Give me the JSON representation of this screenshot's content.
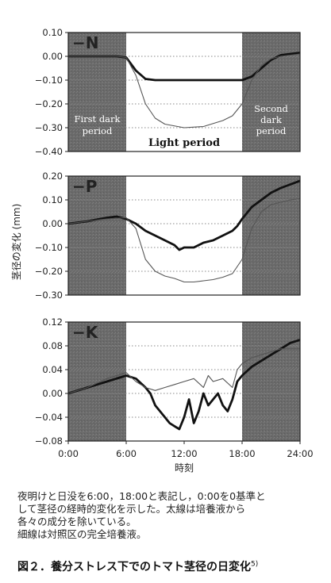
{
  "chart_data": [
    {
      "type": "line",
      "panel_label": "−N",
      "ylim": [
        -0.4,
        0.1
      ],
      "yticks": [
        "0.10",
        "0.00",
        "−0.10",
        "−0.20",
        "−0.30",
        "−0.40"
      ],
      "grid": "dotted horizontal",
      "period_labels": {
        "first_dark": [
          "First dark",
          "period"
        ],
        "light": "Light period",
        "second_dark": [
          "Second",
          "dark",
          "period"
        ]
      },
      "series": [
        {
          "style": "thick",
          "x": [
            0,
            3,
            5,
            6,
            7,
            8,
            9,
            10,
            12,
            14,
            16,
            17,
            18,
            19,
            20,
            21,
            22,
            23,
            24
          ],
          "y": [
            0.0,
            0.0,
            0.0,
            -0.005,
            -0.06,
            -0.095,
            -0.1,
            -0.1,
            -0.1,
            -0.1,
            -0.1,
            -0.1,
            -0.1,
            -0.085,
            -0.05,
            -0.015,
            0.005,
            0.01,
            0.015
          ]
        },
        {
          "style": "thin",
          "x": [
            0,
            3,
            5,
            6,
            7,
            8,
            9,
            10,
            12,
            14,
            16,
            17,
            18,
            19,
            20,
            21,
            22,
            23,
            24
          ],
          "y": [
            0.0,
            0.0,
            0.0,
            -0.005,
            -0.08,
            -0.2,
            -0.26,
            -0.285,
            -0.3,
            -0.295,
            -0.27,
            -0.25,
            -0.2,
            -0.1,
            -0.04,
            -0.01,
            0.0,
            0.005,
            0.01
          ]
        }
      ]
    },
    {
      "type": "line",
      "panel_label": "−P",
      "ylim": [
        -0.3,
        0.2
      ],
      "yticks": [
        "0.20",
        "0.10",
        "0.00",
        "−0.10",
        "−0.20",
        "−0.30"
      ],
      "grid": "dotted horizontal",
      "series": [
        {
          "style": "thick",
          "x": [
            0,
            2,
            4,
            5,
            6,
            7,
            8,
            9,
            10,
            11,
            11.5,
            12,
            13,
            14,
            15,
            16,
            17,
            17.5,
            18,
            19,
            20,
            21,
            22,
            23,
            24
          ],
          "y": [
            0.0,
            0.01,
            0.025,
            0.03,
            0.02,
            0.0,
            -0.03,
            -0.05,
            -0.07,
            -0.09,
            -0.11,
            -0.1,
            -0.1,
            -0.08,
            -0.07,
            -0.05,
            -0.03,
            -0.01,
            0.02,
            0.07,
            0.1,
            0.13,
            0.15,
            0.165,
            0.18
          ]
        },
        {
          "style": "thin",
          "x": [
            0,
            2,
            4,
            6,
            7,
            8,
            9,
            10,
            11,
            12,
            13,
            14,
            15,
            16,
            17,
            18,
            19,
            20,
            21,
            22,
            23,
            24
          ],
          "y": [
            0.0,
            0.01,
            0.02,
            0.025,
            -0.02,
            -0.15,
            -0.2,
            -0.22,
            -0.23,
            -0.245,
            -0.245,
            -0.24,
            -0.235,
            -0.225,
            -0.21,
            -0.15,
            -0.02,
            0.05,
            0.08,
            0.09,
            0.1,
            0.105
          ]
        }
      ]
    },
    {
      "type": "line",
      "panel_label": "−K",
      "ylim": [
        -0.08,
        0.12
      ],
      "yticks": [
        "0.12",
        "0.08",
        "0.04",
        "0.00",
        "−0.04",
        "−0.08"
      ],
      "grid": "dotted horizontal",
      "xticks": [
        "0:00",
        "6:00",
        "12:00",
        "18:00",
        "24:00"
      ],
      "xlabel": "時刻",
      "series": [
        {
          "style": "thick",
          "x": [
            0,
            2,
            4,
            6,
            7,
            8,
            8.5,
            9,
            9.5,
            10,
            10.5,
            11,
            11.5,
            12,
            12.5,
            13,
            13.5,
            14,
            14.5,
            15,
            15.5,
            16,
            16.5,
            17,
            17.5,
            18,
            19,
            20,
            21,
            22,
            23,
            24
          ],
          "y": [
            0.0,
            0.01,
            0.02,
            0.03,
            0.025,
            0.01,
            0.0,
            -0.02,
            -0.03,
            -0.04,
            -0.05,
            -0.055,
            -0.06,
            -0.04,
            -0.01,
            -0.05,
            -0.03,
            0.0,
            -0.02,
            -0.01,
            0.0,
            -0.02,
            -0.03,
            -0.01,
            0.02,
            0.03,
            0.045,
            0.055,
            0.065,
            0.075,
            0.085,
            0.09
          ]
        },
        {
          "style": "thin",
          "x": [
            0,
            2,
            4,
            6,
            7,
            8,
            9,
            10,
            11,
            12,
            13,
            14,
            14.5,
            15,
            16,
            17,
            17.5,
            18,
            19,
            20,
            21,
            22,
            23,
            24
          ],
          "y": [
            0.0,
            0.01,
            0.025,
            0.035,
            0.02,
            0.01,
            0.005,
            0.01,
            0.015,
            0.02,
            0.025,
            0.01,
            0.03,
            0.02,
            0.025,
            0.01,
            0.04,
            0.05,
            0.06,
            0.065,
            0.07,
            0.075,
            0.075,
            0.075
          ]
        }
      ]
    }
  ],
  "shared_ylabel": "茎径の変化 (mm)",
  "caption_lines": [
    "夜明けと日没を6:00，18:00と表記し，0:00を0基準と",
    "して茎径の経時的変化を示した。太線は培養液から",
    "各々の成分を除いている。",
    "細線は対照区の完全培養液。"
  ],
  "figure_title": "図２．養分ストレス下でのトマト茎径の日変化",
  "figure_ref": "5)",
  "colors": {
    "dark_period": "#6e6e6e",
    "light_period": "#ffffff",
    "thick_line": "#111111",
    "thin_line": "#555555",
    "thin_line_on_dark": "#d8d8d8",
    "grid": "#777777"
  }
}
